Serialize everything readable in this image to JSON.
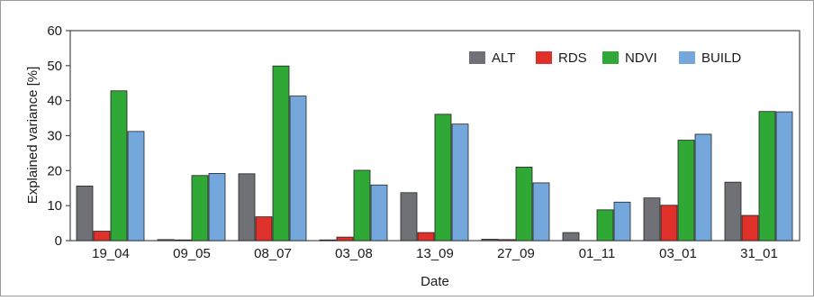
{
  "chart_data": {
    "type": "bar",
    "categories": [
      "19_04",
      "09_05",
      "08_07",
      "03_08",
      "13_09",
      "27_09",
      "01_11",
      "03_01",
      "31_01"
    ],
    "series": [
      {
        "name": "ALT",
        "color": "#707176",
        "values": [
          15.6,
          0.3,
          19.1,
          0.2,
          13.7,
          0.4,
          2.3,
          12.2,
          16.7
        ]
      },
      {
        "name": "RDS",
        "color": "#e0302a",
        "values": [
          2.7,
          0.2,
          6.8,
          1.0,
          2.3,
          0.3,
          0.0,
          10.1,
          7.2
        ]
      },
      {
        "name": "NDVI",
        "color": "#2fa835",
        "values": [
          42.8,
          18.6,
          49.9,
          20.1,
          36.1,
          21.0,
          8.8,
          28.7,
          36.9
        ]
      },
      {
        "name": "BUILD",
        "color": "#74a7dc",
        "values": [
          31.2,
          19.2,
          41.3,
          15.9,
          33.3,
          16.5,
          11.0,
          30.4,
          36.8
        ]
      }
    ],
    "title": "",
    "xlabel": "Date",
    "ylabel": "Explained variance [%]",
    "ylim": [
      0,
      60
    ],
    "yticks": [
      0,
      10,
      20,
      30,
      40,
      50,
      60
    ],
    "grid": false,
    "legend_position": "top-right"
  }
}
